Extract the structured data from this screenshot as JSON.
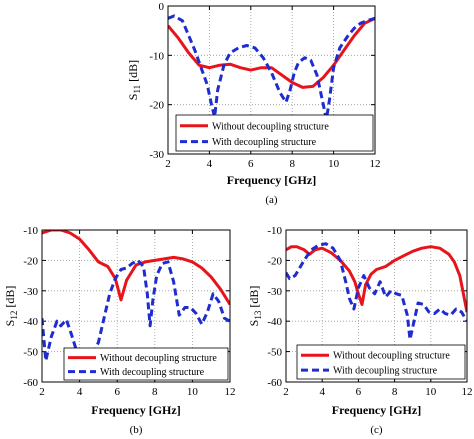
{
  "chart_data": [
    {
      "id": "a",
      "type": "line",
      "caption": "(a)",
      "xlabel": "Frequency [GHz]",
      "ylabel": "S",
      "ylabel_sub": "11",
      "ylabel_unit": " [dB]",
      "xlim": [
        2,
        12
      ],
      "ylim": [
        -30,
        0
      ],
      "xticks": [
        2,
        4,
        6,
        8,
        10,
        12
      ],
      "yticks": [
        0,
        -10,
        -20,
        -30
      ],
      "grid": true,
      "legend_position": "bottom-right",
      "series": [
        {
          "name": "Without decoupling structure",
          "color": "#e8141b",
          "dash": "solid",
          "x": [
            2.0,
            2.5,
            3.0,
            3.5,
            4.0,
            4.5,
            5.0,
            5.5,
            6.0,
            6.5,
            7.0,
            7.5,
            8.0,
            8.5,
            9.0,
            9.5,
            10.0,
            10.5,
            11.0,
            11.5,
            12.0
          ],
          "y": [
            -4.0,
            -6.5,
            -9.5,
            -12.0,
            -12.5,
            -12.0,
            -11.8,
            -12.5,
            -13.0,
            -12.5,
            -12.5,
            -14.0,
            -15.5,
            -16.5,
            -16.3,
            -14.5,
            -12.0,
            -9.0,
            -6.0,
            -3.5,
            -2.5
          ]
        },
        {
          "name": "With decoupling structure",
          "color": "#1f2ccf",
          "dash": "dashed",
          "x": [
            2.0,
            2.3,
            2.7,
            3.0,
            3.3,
            3.6,
            3.9,
            4.1,
            4.25,
            4.4,
            4.7,
            5.0,
            5.4,
            5.8,
            6.2,
            6.6,
            7.0,
            7.4,
            7.7,
            7.9,
            8.1,
            8.3,
            8.6,
            8.9,
            9.2,
            9.5,
            9.65,
            9.8,
            10.0,
            10.3,
            10.7,
            11.0,
            11.3,
            11.6,
            12.0
          ],
          "y": [
            -2.5,
            -2.0,
            -3.0,
            -6.0,
            -9.0,
            -12.5,
            -16.0,
            -20.0,
            -22.5,
            -17.0,
            -12.0,
            -9.5,
            -8.5,
            -8.0,
            -8.5,
            -10.5,
            -13.5,
            -17.5,
            -19.5,
            -17.0,
            -13.5,
            -11.5,
            -10.5,
            -11.0,
            -14.0,
            -20.0,
            -23.0,
            -19.0,
            -12.5,
            -8.5,
            -6.0,
            -4.5,
            -3.5,
            -3.0,
            -2.5
          ]
        }
      ]
    },
    {
      "id": "b",
      "type": "line",
      "caption": "(b)",
      "xlabel": "Frequency [GHz]",
      "ylabel": "S",
      "ylabel_sub": "12",
      "ylabel_unit": " [dB]",
      "xlim": [
        2,
        12
      ],
      "ylim": [
        -60,
        -10
      ],
      "xticks": [
        2,
        4,
        6,
        8,
        10,
        12
      ],
      "yticks": [
        -10,
        -20,
        -30,
        -40,
        -50,
        -60
      ],
      "grid": true,
      "legend_position": "bottom-right",
      "series": [
        {
          "name": "Without decoupling structure",
          "color": "#e8141b",
          "dash": "solid",
          "x": [
            2.0,
            2.5,
            3.0,
            3.5,
            4.0,
            4.5,
            5.0,
            5.5,
            5.9,
            6.2,
            6.5,
            7.0,
            7.5,
            8.0,
            8.5,
            9.0,
            9.5,
            10.0,
            10.5,
            11.0,
            11.5,
            12.0
          ],
          "y": [
            -11.0,
            -10.0,
            -10.0,
            -11.0,
            -13.0,
            -16.5,
            -20.5,
            -22.0,
            -26.0,
            -33.0,
            -26.5,
            -21.5,
            -20.5,
            -20.0,
            -19.5,
            -19.0,
            -19.5,
            -20.5,
            -22.5,
            -25.5,
            -29.5,
            -34.5
          ]
        },
        {
          "name": "With decoupling structure",
          "color": "#1f2ccf",
          "dash": "dashed",
          "x": [
            2.0,
            2.2,
            2.5,
            2.8,
            3.0,
            3.3,
            3.6,
            3.9,
            4.3,
            4.7,
            5.0,
            5.3,
            5.6,
            5.9,
            6.2,
            6.5,
            6.8,
            7.1,
            7.4,
            7.6,
            7.75,
            7.9,
            8.1,
            8.4,
            8.7,
            9.0,
            9.3,
            9.6,
            9.9,
            10.2,
            10.5,
            10.8,
            11.1,
            11.4,
            11.7,
            12.0
          ],
          "y": [
            -39.0,
            -53.0,
            -45.0,
            -40.0,
            -41.5,
            -39.5,
            -45.0,
            -51.0,
            -53.0,
            -50.5,
            -47.0,
            -39.0,
            -31.0,
            -26.0,
            -23.0,
            -22.5,
            -21.0,
            -20.0,
            -22.0,
            -31.0,
            -41.5,
            -33.0,
            -25.0,
            -21.0,
            -20.5,
            -27.0,
            -38.0,
            -35.5,
            -35.5,
            -37.5,
            -41.0,
            -37.0,
            -31.0,
            -33.5,
            -39.0,
            -40.0
          ]
        }
      ]
    },
    {
      "id": "c",
      "type": "line",
      "caption": "(c)",
      "xlabel": "Frequency [GHz]",
      "ylabel": "S",
      "ylabel_sub": "13",
      "ylabel_unit": " [dB]",
      "xlim": [
        2,
        12
      ],
      "ylim": [
        -60,
        -10
      ],
      "xticks": [
        2,
        4,
        6,
        8,
        10,
        12
      ],
      "yticks": [
        -10,
        -20,
        -30,
        -40,
        -50,
        -60
      ],
      "grid": true,
      "legend_position": "bottom-right",
      "series": [
        {
          "name": "Without decoupling structure",
          "color": "#e8141b",
          "dash": "solid",
          "x": [
            2.0,
            2.3,
            2.6,
            3.0,
            3.3,
            3.6,
            4.0,
            4.5,
            5.0,
            5.5,
            5.8,
            6.0,
            6.2,
            6.4,
            6.7,
            7.0,
            7.5,
            8.0,
            8.5,
            9.0,
            9.5,
            10.0,
            10.5,
            11.0,
            11.3,
            11.6,
            11.8,
            12.0
          ],
          "y": [
            -16.5,
            -15.5,
            -15.5,
            -16.5,
            -18.0,
            -16.5,
            -16.0,
            -17.5,
            -20.0,
            -23.5,
            -27.0,
            -31.0,
            -34.5,
            -28.0,
            -24.5,
            -23.0,
            -22.0,
            -20.0,
            -18.5,
            -17.0,
            -16.0,
            -15.5,
            -16.0,
            -18.0,
            -20.5,
            -25.0,
            -31.0,
            -37.0
          ]
        },
        {
          "name": "With decoupling structure",
          "color": "#1f2ccf",
          "dash": "dashed",
          "x": [
            2.0,
            2.2,
            2.5,
            2.8,
            3.0,
            3.4,
            3.8,
            4.2,
            4.6,
            5.0,
            5.3,
            5.5,
            5.75,
            6.0,
            6.3,
            6.6,
            6.9,
            7.2,
            7.5,
            7.8,
            8.1,
            8.4,
            8.7,
            8.85,
            9.0,
            9.15,
            9.3,
            9.6,
            9.9,
            10.2,
            10.5,
            10.8,
            11.1,
            11.4,
            11.7,
            12.0
          ],
          "y": [
            -24.0,
            -26.0,
            -25.0,
            -22.0,
            -20.0,
            -16.5,
            -15.0,
            -14.5,
            -16.0,
            -20.0,
            -27.0,
            -32.5,
            -36.0,
            -29.0,
            -25.0,
            -29.0,
            -31.0,
            -27.0,
            -32.0,
            -30.0,
            -31.0,
            -31.5,
            -38.0,
            -46.0,
            -42.0,
            -38.0,
            -34.0,
            -34.5,
            -37.0,
            -37.5,
            -36.0,
            -37.5,
            -38.0,
            -36.0,
            -37.0,
            -40.0
          ]
        }
      ]
    }
  ]
}
